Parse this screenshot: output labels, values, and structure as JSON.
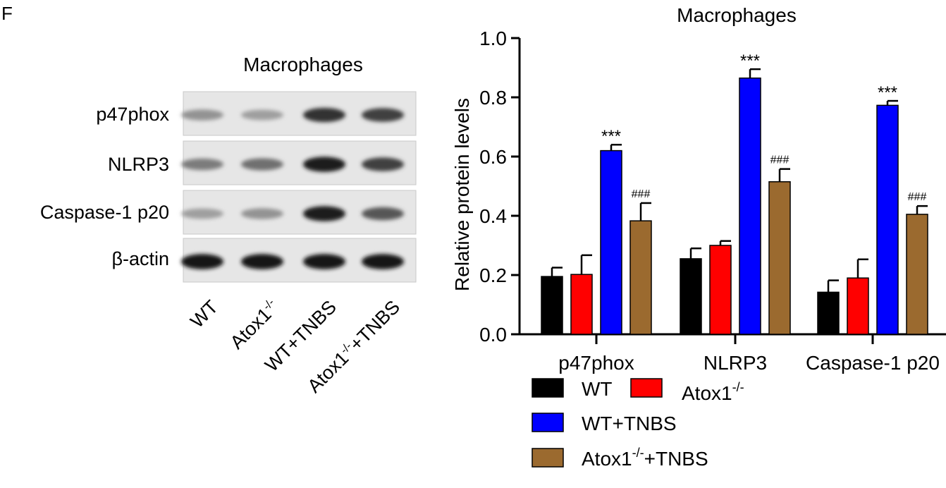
{
  "panel_letter": "F",
  "blot": {
    "title": "Macrophages",
    "rows": [
      "p47phox",
      "NLRP3",
      "Caspase-1 p20",
      "β-actin"
    ],
    "lanes": [
      "WT",
      "Atox1-/-",
      "WT+TNBS",
      "Atox1-/-+TNBS"
    ]
  },
  "colors": {
    "WT": "#000000",
    "Atox1": "#ff0000",
    "WT_TNBS": "#0000ff",
    "Atox1_TNBS": "#9b6a2f"
  },
  "chart_data": {
    "type": "bar",
    "title": "Macrophages",
    "ylabel": "Relative protein levels",
    "xlabel": "",
    "ylim": [
      0,
      1.0
    ],
    "yticks": [
      "0.0",
      "0.2",
      "0.4",
      "0.6",
      "0.8",
      "1.0"
    ],
    "categories": [
      "p47phox",
      "NLRP3",
      "Caspase-1 p20"
    ],
    "series": [
      {
        "name": "WT",
        "values": [
          0.195,
          0.255,
          0.142
        ],
        "errors": [
          0.03,
          0.035,
          0.04
        ]
      },
      {
        "name": "Atox1-/-",
        "values": [
          0.202,
          0.3,
          0.19
        ],
        "errors": [
          0.065,
          0.015,
          0.063
        ]
      },
      {
        "name": "WT+TNBS",
        "values": [
          0.62,
          0.865,
          0.773
        ],
        "errors": [
          0.02,
          0.03,
          0.015
        ]
      },
      {
        "name": "Atox1-/-+TNBS",
        "values": [
          0.383,
          0.515,
          0.405
        ],
        "errors": [
          0.06,
          0.043,
          0.028
        ]
      }
    ],
    "annotations": [
      {
        "category": "p47phox",
        "series": "WT+TNBS",
        "text": "***"
      },
      {
        "category": "p47phox",
        "series": "Atox1-/-+TNBS",
        "text": "###"
      },
      {
        "category": "NLRP3",
        "series": "WT+TNBS",
        "text": "***"
      },
      {
        "category": "NLRP3",
        "series": "Atox1-/-+TNBS",
        "text": "###"
      },
      {
        "category": "Caspase-1 p20",
        "series": "WT+TNBS",
        "text": "***"
      },
      {
        "category": "Caspase-1 p20",
        "series": "Atox1-/-+TNBS",
        "text": "###"
      }
    ],
    "legend": {
      "placement": "bottom",
      "entries": [
        {
          "label": "WT",
          "base": "WT",
          "sup": ""
        },
        {
          "label": "Atox1-/-",
          "base": "Atox1",
          "sup": "-/-"
        },
        {
          "label": "WT+TNBS",
          "base": "WT+TNBS",
          "sup": ""
        },
        {
          "label": "Atox1-/-+TNBS",
          "base": "Atox1",
          "sup": "-/-",
          "suffix": "+TNBS"
        }
      ]
    }
  }
}
